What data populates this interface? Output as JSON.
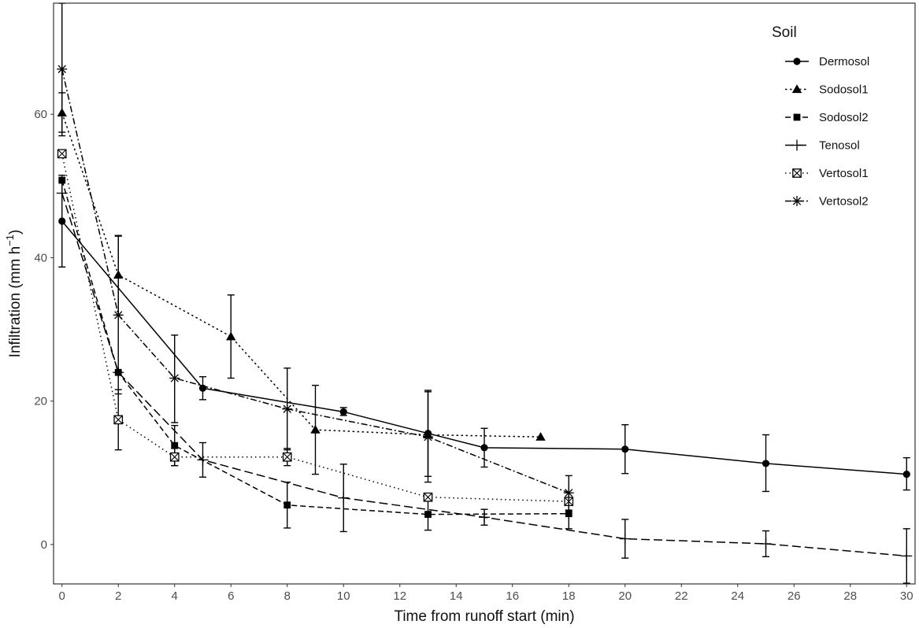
{
  "chart_data": {
    "type": "line",
    "xlabel": "Time from runoff start (min)",
    "ylabel_main": "Infiltration (mm h",
    "ylabel_sup": "−1",
    "ylabel_close": ")",
    "xlim": [
      -0.3,
      30.3
    ],
    "ylim": [
      -5.5,
      75.5
    ],
    "xticks": [
      0,
      2,
      4,
      6,
      8,
      10,
      12,
      14,
      16,
      18,
      20,
      22,
      24,
      26,
      28,
      30
    ],
    "yticks": [
      0,
      20,
      40,
      60
    ],
    "grid": false,
    "legend": {
      "title": "Soil",
      "placement": "top-right"
    },
    "series": [
      {
        "name": "Dermosol",
        "marker": "circle",
        "dash": "solid",
        "points": [
          {
            "x": 0,
            "y": 45.1,
            "lo": 38.7,
            "hi": 51.5
          },
          {
            "x": 5,
            "y": 21.8,
            "lo": 20.2,
            "hi": 23.4
          },
          {
            "x": 10,
            "y": 18.5,
            "lo": 18.0,
            "hi": 19.1
          },
          {
            "x": 13,
            "y": 15.5,
            "lo": 9.5,
            "hi": 21.5
          },
          {
            "x": 15,
            "y": 13.5,
            "lo": 10.8,
            "hi": 16.2
          },
          {
            "x": 20,
            "y": 13.3,
            "lo": 9.9,
            "hi": 16.7
          },
          {
            "x": 25,
            "y": 11.3,
            "lo": 7.4,
            "hi": 15.3
          },
          {
            "x": 30,
            "y": 9.8,
            "lo": 7.6,
            "hi": 12.1
          }
        ]
      },
      {
        "name": "Sodosol1",
        "marker": "triangle",
        "dash": "dotted",
        "points": [
          {
            "x": 0,
            "y": 60.2,
            "lo": 57.5,
            "hi": 63.0
          },
          {
            "x": 2,
            "y": 37.6,
            "lo": 32.0,
            "hi": 43.1
          },
          {
            "x": 6,
            "y": 29.0,
            "lo": 23.2,
            "hi": 34.8
          },
          {
            "x": 9,
            "y": 16.0,
            "lo": 9.8,
            "hi": 22.2
          },
          {
            "x": 13,
            "y": 15.3,
            "lo": 15.3,
            "hi": 15.3
          },
          {
            "x": 17,
            "y": 15.0,
            "lo": 15.0,
            "hi": 15.0
          }
        ]
      },
      {
        "name": "Sodosol2",
        "marker": "square",
        "dash": "dashed",
        "points": [
          {
            "x": 0,
            "y": 50.8,
            "lo": 50.8,
            "hi": 50.8
          },
          {
            "x": 2,
            "y": 24.0,
            "lo": 24.0,
            "hi": 24.0
          },
          {
            "x": 4,
            "y": 13.8,
            "lo": 11.0,
            "hi": 16.6
          },
          {
            "x": 8,
            "y": 5.5,
            "lo": 2.3,
            "hi": 8.7
          },
          {
            "x": 13,
            "y": 4.2,
            "lo": 2.0,
            "hi": 6.4
          },
          {
            "x": 18,
            "y": 4.3,
            "lo": 2.2,
            "hi": 6.4
          }
        ]
      },
      {
        "name": "Tenosol",
        "marker": "plus",
        "dash": "longdash",
        "points": [
          {
            "x": 0,
            "y": 49.0,
            "lo": 49.0,
            "hi": 49.0
          },
          {
            "x": 2,
            "y": 24.0,
            "lo": 24.0,
            "hi": 24.0
          },
          {
            "x": 5,
            "y": 11.8,
            "lo": 9.4,
            "hi": 14.2
          },
          {
            "x": 10,
            "y": 6.5,
            "lo": 1.8,
            "hi": 11.2
          },
          {
            "x": 15,
            "y": 3.8,
            "lo": 2.7,
            "hi": 4.9
          },
          {
            "x": 20,
            "y": 0.8,
            "lo": -1.9,
            "hi": 3.5
          },
          {
            "x": 25,
            "y": 0.1,
            "lo": -1.7,
            "hi": 1.9
          },
          {
            "x": 30,
            "y": -1.6,
            "lo": -5.4,
            "hi": 2.2
          }
        ]
      },
      {
        "name": "Vertosol1",
        "marker": "boxx",
        "dash": "dotted-fine",
        "points": [
          {
            "x": 0,
            "y": 54.5,
            "lo": 54.5,
            "hi": 54.5
          },
          {
            "x": 2,
            "y": 17.4,
            "lo": 13.2,
            "hi": 21.6
          },
          {
            "x": 4,
            "y": 12.2,
            "lo": 11.0,
            "hi": 13.4
          },
          {
            "x": 8,
            "y": 12.2,
            "lo": 11.0,
            "hi": 13.4
          },
          {
            "x": 13,
            "y": 6.6,
            "lo": 6.6,
            "hi": 6.6
          },
          {
            "x": 18,
            "y": 6.0,
            "lo": 6.0,
            "hi": 6.0
          }
        ]
      },
      {
        "name": "Vertosol2",
        "marker": "asterisk",
        "dash": "dotdash",
        "points": [
          {
            "x": 0,
            "y": 66.3,
            "lo": 57.0,
            "hi": 75.5
          },
          {
            "x": 2,
            "y": 32.0,
            "lo": 21.0,
            "hi": 43.0
          },
          {
            "x": 4,
            "y": 23.2,
            "lo": 17.0,
            "hi": 29.2
          },
          {
            "x": 8,
            "y": 18.9,
            "lo": 13.2,
            "hi": 24.6
          },
          {
            "x": 13,
            "y": 15.0,
            "lo": 8.7,
            "hi": 21.3
          },
          {
            "x": 18,
            "y": 7.2,
            "lo": 4.8,
            "hi": 9.6
          }
        ]
      }
    ]
  }
}
